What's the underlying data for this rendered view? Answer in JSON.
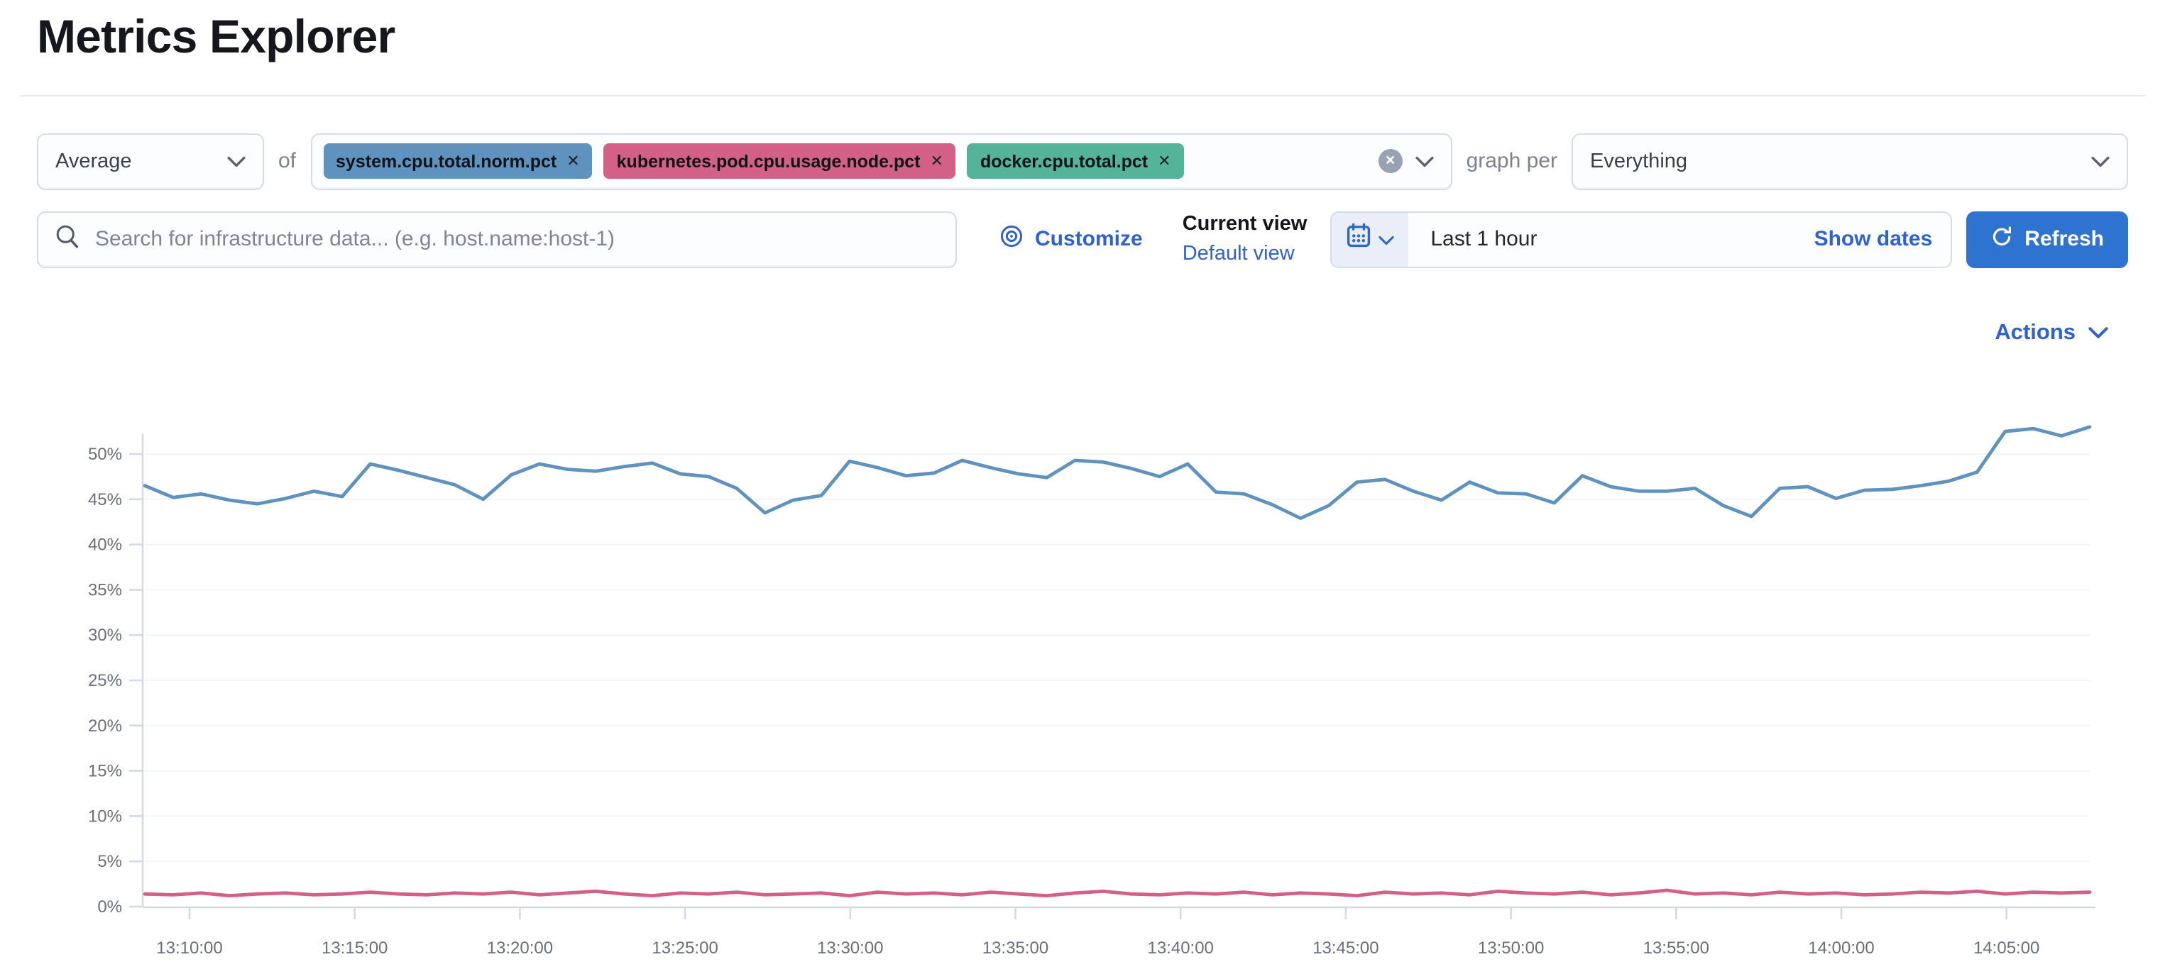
{
  "page": {
    "title": "Metrics Explorer"
  },
  "toolbar": {
    "aggregation": {
      "value": "Average"
    },
    "of_label": "of",
    "metrics": [
      {
        "label": "system.cpu.total.norm.pct",
        "color": "#6092C0"
      },
      {
        "label": "kubernetes.pod.cpu.usage.node.pct",
        "color": "#D36086"
      },
      {
        "label": "docker.cpu.total.pct",
        "color": "#54B399"
      }
    ],
    "clear_icon": "x-in-circle",
    "graph_per_label": "graph per",
    "group_by": {
      "value": "Everything"
    }
  },
  "search": {
    "placeholder": "Search for infrastructure data... (e.g. host.name:host-1)"
  },
  "view_controls": {
    "customize_label": "Customize",
    "current_view_label": "Current view",
    "default_view_label": "Default view"
  },
  "time_picker": {
    "value": "Last 1 hour",
    "show_dates_label": "Show dates",
    "refresh_label": "Refresh"
  },
  "actions_label": "Actions",
  "colors": {
    "link_blue": "#3161ce",
    "button_blue": "#2f73d1",
    "axis_gray": "#d3dae6",
    "tick_text": "#69707d"
  },
  "chart_data": {
    "type": "line",
    "title": "",
    "xlabel": "",
    "ylabel": "",
    "x_range": [
      "13:08:00",
      "14:08:00"
    ],
    "ylim": [
      0,
      55
    ],
    "y_tick_labels": [
      "0%",
      "5%",
      "10%",
      "15%",
      "20%",
      "25%",
      "30%",
      "35%",
      "40%",
      "45%",
      "50%"
    ],
    "x_tick_labels": [
      "13:10:00",
      "13:15:00",
      "13:20:00",
      "13:25:00",
      "13:30:00",
      "13:35:00",
      "13:40:00",
      "13:45:00",
      "13:50:00",
      "13:55:00",
      "14:00:00",
      "14:05:00"
    ],
    "grid": false,
    "legend": "none",
    "series": [
      {
        "name": "system.cpu.total.norm.pct",
        "color": "#6092C0",
        "unit": "%",
        "values": [
          46.5,
          45.2,
          45.6,
          44.9,
          44.5,
          45.1,
          45.9,
          45.3,
          48.9,
          48.2,
          47.4,
          46.6,
          45.0,
          47.7,
          48.9,
          48.3,
          48.1,
          48.6,
          49.0,
          47.8,
          47.5,
          46.2,
          43.5,
          44.9,
          45.4,
          49.2,
          48.5,
          47.6,
          47.9,
          49.3,
          48.5,
          47.8,
          47.4,
          49.3,
          49.1,
          48.4,
          47.5,
          48.9,
          45.8,
          45.6,
          44.4,
          42.9,
          44.3,
          46.9,
          47.2,
          45.9,
          44.9,
          46.9,
          45.7,
          45.6,
          44.6,
          47.6,
          46.4,
          45.9,
          45.9,
          46.2,
          44.3,
          43.1,
          46.2,
          46.4,
          45.1,
          46.0,
          46.1,
          46.5,
          47.0,
          48.0,
          52.5,
          52.8,
          52.0,
          53.0
        ]
      },
      {
        "name": "kubernetes.pod.cpu.usage.node.pct",
        "color": "#D36086",
        "unit": "%",
        "values": [
          1.4,
          1.3,
          1.5,
          1.2,
          1.4,
          1.5,
          1.3,
          1.4,
          1.6,
          1.4,
          1.3,
          1.5,
          1.4,
          1.6,
          1.3,
          1.5,
          1.7,
          1.4,
          1.2,
          1.5,
          1.4,
          1.6,
          1.3,
          1.4,
          1.5,
          1.2,
          1.6,
          1.4,
          1.5,
          1.3,
          1.6,
          1.4,
          1.2,
          1.5,
          1.7,
          1.4,
          1.3,
          1.5,
          1.4,
          1.6,
          1.3,
          1.5,
          1.4,
          1.2,
          1.6,
          1.4,
          1.5,
          1.3,
          1.7,
          1.5,
          1.4,
          1.6,
          1.3,
          1.5,
          1.8,
          1.4,
          1.5,
          1.3,
          1.6,
          1.4,
          1.5,
          1.3,
          1.4,
          1.6,
          1.5,
          1.7,
          1.4,
          1.6,
          1.5,
          1.6
        ]
      }
    ]
  }
}
